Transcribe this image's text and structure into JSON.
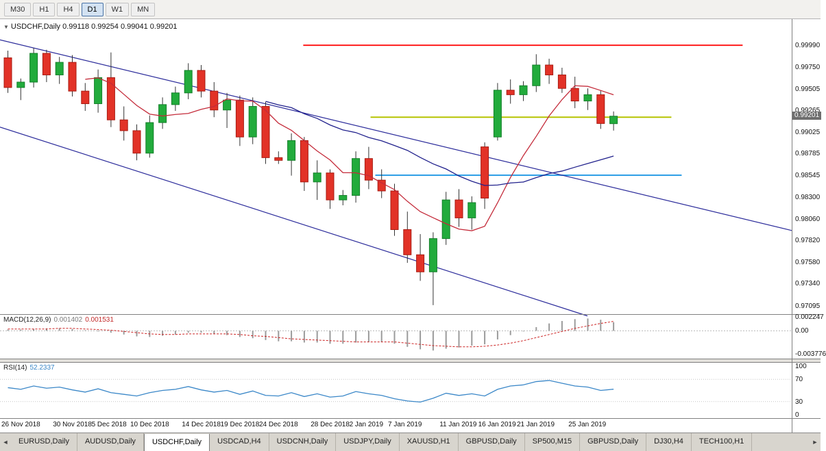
{
  "toolbar": {
    "timeframes": [
      {
        "label": "M30",
        "active": false
      },
      {
        "label": "H1",
        "active": false
      },
      {
        "label": "H4",
        "active": false
      },
      {
        "label": "D1",
        "active": true
      },
      {
        "label": "W1",
        "active": false
      },
      {
        "label": "MN",
        "active": false
      }
    ]
  },
  "chart_header": {
    "collapse_icon": "▼",
    "symbol": "USDCHF,Daily",
    "open": "0.99118",
    "high": "0.99254",
    "low": "0.99041",
    "close": "0.99201"
  },
  "price_axis": {
    "ticks": [
      "0.99990",
      "0.99750",
      "0.99505",
      "0.99265",
      "0.99025",
      "0.98785",
      "0.98545",
      "0.98300",
      "0.98060",
      "0.97820",
      "0.97580",
      "0.97340",
      "0.97095"
    ],
    "current": "0.99201"
  },
  "macd_panel": {
    "label": "MACD(12,26,9)",
    "value_main": "0.001402",
    "value_signal": "0.001531",
    "ticks": [
      {
        "v": 0.002247,
        "label": "0.002247"
      },
      {
        "v": 0,
        "label": "0.00"
      },
      {
        "v": -0.003776,
        "label": "-0.003776"
      }
    ]
  },
  "rsi_panel": {
    "label": "RSI(14)",
    "value": "52.2337",
    "ticks": [
      {
        "v": 100,
        "label": "100"
      },
      {
        "v": 70,
        "label": "70"
      },
      {
        "v": 30,
        "label": "30"
      },
      {
        "v": 0,
        "label": "0"
      }
    ],
    "levels": [
      70,
      30
    ]
  },
  "tabs": {
    "scroll_left": "◄",
    "scroll_right": "►",
    "items": [
      {
        "label": "EURUSD,Daily",
        "active": false
      },
      {
        "label": "AUDUSD,Daily",
        "active": false
      },
      {
        "label": "USDCHF,Daily",
        "active": true
      },
      {
        "label": "USDCAD,H4",
        "active": false
      },
      {
        "label": "USDCNH,Daily",
        "active": false
      },
      {
        "label": "USDJPY,Daily",
        "active": false
      },
      {
        "label": "XAUUSD,H1",
        "active": false
      },
      {
        "label": "GBPUSD,Daily",
        "active": false
      },
      {
        "label": "SP500,M15",
        "active": false
      },
      {
        "label": "GBPUSD,Daily",
        "active": false
      },
      {
        "label": "DJ30,H4",
        "active": false
      },
      {
        "label": "TECH100,H1",
        "active": false
      }
    ]
  },
  "chart_data": {
    "type": "candlestick",
    "title": "USDCHF,Daily",
    "y_range": [
      0.97,
      1.0028
    ],
    "colors": {
      "up": "#22ab3c",
      "up_border": "#157f2a",
      "down": "#e23227",
      "down_border": "#a81b12",
      "wick": "#333333",
      "macd_hist": "#9b9b9b",
      "macd_signal": "#cc2222",
      "rsi": "#3a87c8"
    },
    "candles": [
      {
        "d": "26 Nov 2018",
        "o": 0.9985,
        "h": 0.9993,
        "l": 0.9946,
        "c": 0.9952
      },
      {
        "d": "27 Nov 2018",
        "o": 0.9952,
        "h": 0.9962,
        "l": 0.9938,
        "c": 0.9958
      },
      {
        "d": "28 Nov 2018",
        "o": 0.9958,
        "h": 0.9996,
        "l": 0.9952,
        "c": 0.999
      },
      {
        "d": "29 Nov 2018",
        "o": 0.999,
        "h": 0.9994,
        "l": 0.9958,
        "c": 0.9966
      },
      {
        "d": "30 Nov 2018",
        "o": 0.9966,
        "h": 0.9986,
        "l": 0.9956,
        "c": 0.998
      },
      {
        "d": "3 Dec 2018",
        "o": 0.998,
        "h": 0.9988,
        "l": 0.9942,
        "c": 0.9948
      },
      {
        "d": "4 Dec 2018",
        "o": 0.9948,
        "h": 0.9957,
        "l": 0.9926,
        "c": 0.9934
      },
      {
        "d": "5 Dec 2018",
        "o": 0.9934,
        "h": 0.9972,
        "l": 0.9924,
        "c": 0.9963
      },
      {
        "d": "6 Dec 2018",
        "o": 0.9963,
        "h": 0.9991,
        "l": 0.9908,
        "c": 0.9916
      },
      {
        "d": "7 Dec 2018",
        "o": 0.9916,
        "h": 0.9931,
        "l": 0.9893,
        "c": 0.9904
      },
      {
        "d": "10 Dec 2018",
        "o": 0.9904,
        "h": 0.9911,
        "l": 0.9871,
        "c": 0.9879
      },
      {
        "d": "11 Dec 2018",
        "o": 0.9879,
        "h": 0.9921,
        "l": 0.9874,
        "c": 0.9913
      },
      {
        "d": "12 Dec 2018",
        "o": 0.9913,
        "h": 0.9941,
        "l": 0.9906,
        "c": 0.9933
      },
      {
        "d": "13 Dec 2018",
        "o": 0.9933,
        "h": 0.9953,
        "l": 0.9926,
        "c": 0.9946
      },
      {
        "d": "14 Dec 2018",
        "o": 0.9946,
        "h": 0.9979,
        "l": 0.9939,
        "c": 0.9971
      },
      {
        "d": "17 Dec 2018",
        "o": 0.9971,
        "h": 0.9977,
        "l": 0.9941,
        "c": 0.9948
      },
      {
        "d": "18 Dec 2018",
        "o": 0.9948,
        "h": 0.9958,
        "l": 0.9919,
        "c": 0.9927
      },
      {
        "d": "19 Dec 2018",
        "o": 0.9927,
        "h": 0.9946,
        "l": 0.9907,
        "c": 0.9938
      },
      {
        "d": "20 Dec 2018",
        "o": 0.9938,
        "h": 0.9943,
        "l": 0.9887,
        "c": 0.9897
      },
      {
        "d": "21 Dec 2018",
        "o": 0.9897,
        "h": 0.9941,
        "l": 0.9889,
        "c": 0.9931
      },
      {
        "d": "24 Dec 2018",
        "o": 0.9931,
        "h": 0.9936,
        "l": 0.9867,
        "c": 0.9874
      },
      {
        "d": "25 Dec 2018",
        "o": 0.9874,
        "h": 0.9881,
        "l": 0.9867,
        "c": 0.9871
      },
      {
        "d": "26 Dec 2018",
        "o": 0.9871,
        "h": 0.9901,
        "l": 0.9854,
        "c": 0.9893
      },
      {
        "d": "27 Dec 2018",
        "o": 0.9893,
        "h": 0.9897,
        "l": 0.9837,
        "c": 0.9847
      },
      {
        "d": "28 Dec 2018",
        "o": 0.9847,
        "h": 0.9871,
        "l": 0.9827,
        "c": 0.9857
      },
      {
        "d": "31 Dec 2018",
        "o": 0.9857,
        "h": 0.9861,
        "l": 0.9817,
        "c": 0.9827
      },
      {
        "d": "1 Jan 2019",
        "o": 0.9827,
        "h": 0.9838,
        "l": 0.9821,
        "c": 0.9832
      },
      {
        "d": "2 Jan 2019",
        "o": 0.9832,
        "h": 0.9881,
        "l": 0.9824,
        "c": 0.9873
      },
      {
        "d": "3 Jan 2019",
        "o": 0.9873,
        "h": 0.9886,
        "l": 0.9839,
        "c": 0.9849
      },
      {
        "d": "4 Jan 2019",
        "o": 0.9849,
        "h": 0.9861,
        "l": 0.9829,
        "c": 0.9837
      },
      {
        "d": "7 Jan 2019",
        "o": 0.9837,
        "h": 0.9845,
        "l": 0.9787,
        "c": 0.9794
      },
      {
        "d": "8 Jan 2019",
        "o": 0.9794,
        "h": 0.9814,
        "l": 0.9757,
        "c": 0.9766
      },
      {
        "d": "9 Jan 2019",
        "o": 0.9766,
        "h": 0.9789,
        "l": 0.9737,
        "c": 0.9747
      },
      {
        "d": "10 Jan 2019",
        "o": 0.9747,
        "h": 0.9791,
        "l": 0.971,
        "c": 0.9784
      },
      {
        "d": "11 Jan 2019",
        "o": 0.9784,
        "h": 0.9836,
        "l": 0.9777,
        "c": 0.9827
      },
      {
        "d": "14 Jan 2019",
        "o": 0.9827,
        "h": 0.9839,
        "l": 0.9797,
        "c": 0.9807
      },
      {
        "d": "15 Jan 2019",
        "o": 0.9807,
        "h": 0.9831,
        "l": 0.9794,
        "c": 0.9824
      },
      {
        "d": "16 Jan 2019",
        "o": 0.9886,
        "h": 0.9891,
        "l": 0.9817,
        "c": 0.9829
      },
      {
        "d": "17 Jan 2019",
        "o": 0.9897,
        "h": 0.9957,
        "l": 0.9893,
        "c": 0.9949
      },
      {
        "d": "18 Jan 2019",
        "o": 0.9949,
        "h": 0.9961,
        "l": 0.9934,
        "c": 0.9944
      },
      {
        "d": "21 Jan 2019",
        "o": 0.9944,
        "h": 0.9959,
        "l": 0.9937,
        "c": 0.9954
      },
      {
        "d": "22 Jan 2019",
        "o": 0.9954,
        "h": 0.9989,
        "l": 0.9947,
        "c": 0.9977
      },
      {
        "d": "23 Jan 2019",
        "o": 0.9977,
        "h": 0.9984,
        "l": 0.9956,
        "c": 0.9966
      },
      {
        "d": "24 Jan 2019",
        "o": 0.9966,
        "h": 0.9974,
        "l": 0.9946,
        "c": 0.9951
      },
      {
        "d": "25 Jan 2019",
        "o": 0.9951,
        "h": 0.9964,
        "l": 0.9929,
        "c": 0.9937
      },
      {
        "d": "28 Jan 2019",
        "o": 0.9937,
        "h": 0.9951,
        "l": 0.9927,
        "c": 0.9944
      },
      {
        "d": "29 Jan 2019",
        "o": 0.9944,
        "h": 0.9949,
        "l": 0.9906,
        "c": 0.9912
      },
      {
        "d": "30 Jan 2019",
        "o": 0.99118,
        "h": 0.99254,
        "l": 0.99041,
        "c": 0.99201
      }
    ],
    "date_labels": [
      {
        "label": "26 Nov 2018",
        "i": 0
      },
      {
        "label": "30 Nov 2018",
        "i": 4
      },
      {
        "label": "5 Dec 2018",
        "i": 7
      },
      {
        "label": "10 Dec 2018",
        "i": 10
      },
      {
        "label": "14 Dec 2018",
        "i": 14
      },
      {
        "label": "19 Dec 2018",
        "i": 17
      },
      {
        "label": "24 Dec 2018",
        "i": 20
      },
      {
        "label": "28 Dec 2018",
        "i": 24
      },
      {
        "label": "2 Jan 2019",
        "i": 27
      },
      {
        "label": "7 Jan 2019",
        "i": 30
      },
      {
        "label": "11 Jan 2019",
        "i": 34
      },
      {
        "label": "16 Jan 2019",
        "i": 37
      },
      {
        "label": "21 Jan 2019",
        "i": 40
      },
      {
        "label": "25 Jan 2019",
        "i": 44
      }
    ],
    "ma": [
      {
        "name": "ma-fast",
        "period": 7,
        "color": "#c42b3a"
      },
      {
        "name": "ma-slow",
        "period": 21,
        "color": "#20208c"
      }
    ],
    "hlines": [
      {
        "price": 0.9999,
        "x1": 0.383,
        "x2": 0.938,
        "color": "#ff1a1a",
        "w": 2
      },
      {
        "price": 0.9919,
        "x1": 0.468,
        "x2": 0.848,
        "color": "#b5c400",
        "w": 2
      },
      {
        "price": 0.98545,
        "x1": 0.474,
        "x2": 0.861,
        "color": "#2e9fe6",
        "w": 2
      }
    ],
    "trendlines": [
      {
        "x1": 0.0,
        "p1": 1.0005,
        "x2": 1.0,
        "p2": 0.9793,
        "color": "#2a2a9a"
      },
      {
        "x1": 0.0,
        "p1": 0.9908,
        "x2": 0.742,
        "p2": 0.9698,
        "color": "#2a2a9a"
      }
    ],
    "macd": {
      "y_range": [
        -0.0044,
        0.0026
      ],
      "histogram": [
        0.0002,
        0.0002,
        0.0003,
        0.0004,
        0.0004,
        0.0003,
        0.0001,
        -0.0001,
        -0.0003,
        -0.0006,
        -0.0009,
        -0.001,
        -0.0008,
        -0.0006,
        -0.0003,
        -0.0003,
        -0.0005,
        -0.0007,
        -0.001,
        -0.0012,
        -0.0015,
        -0.0017,
        -0.0017,
        -0.0019,
        -0.0019,
        -0.0021,
        -0.0021,
        -0.0019,
        -0.0018,
        -0.0018,
        -0.0021,
        -0.0026,
        -0.003,
        -0.0032,
        -0.0029,
        -0.0027,
        -0.0024,
        -0.0022,
        -0.0014,
        -0.0007,
        -0.0001,
        0.0006,
        0.0012,
        0.0016,
        0.0019,
        0.002,
        0.0018,
        0.001402
      ],
      "signal": [
        0.0003,
        0.0003,
        0.0003,
        0.0003,
        0.0004,
        0.0004,
        0.0003,
        0.0002,
        0.0001,
        -0.0001,
        -0.0003,
        -0.0005,
        -0.0006,
        -0.0006,
        -0.0005,
        -0.0005,
        -0.0005,
        -0.0005,
        -0.0006,
        -0.0008,
        -0.0009,
        -0.0011,
        -0.0013,
        -0.0014,
        -0.0015,
        -0.0016,
        -0.0017,
        -0.0018,
        -0.0018,
        -0.0018,
        -0.0018,
        -0.002,
        -0.0022,
        -0.0024,
        -0.0025,
        -0.0026,
        -0.0026,
        -0.0025,
        -0.0023,
        -0.002,
        -0.0016,
        -0.0011,
        -0.0006,
        -0.0001,
        0.0004,
        0.0008,
        0.0012,
        0.001531
      ]
    },
    "rsi": {
      "y_range": [
        0,
        100
      ],
      "values": [
        55,
        52,
        58,
        54,
        56,
        51,
        47,
        53,
        46,
        43,
        40,
        46,
        50,
        52,
        57,
        51,
        47,
        50,
        43,
        49,
        41,
        40,
        46,
        39,
        44,
        38,
        40,
        48,
        44,
        41,
        35,
        31,
        29,
        36,
        45,
        41,
        44,
        40,
        52,
        58,
        60,
        66,
        68,
        63,
        58,
        56,
        50,
        52.2337
      ]
    }
  }
}
